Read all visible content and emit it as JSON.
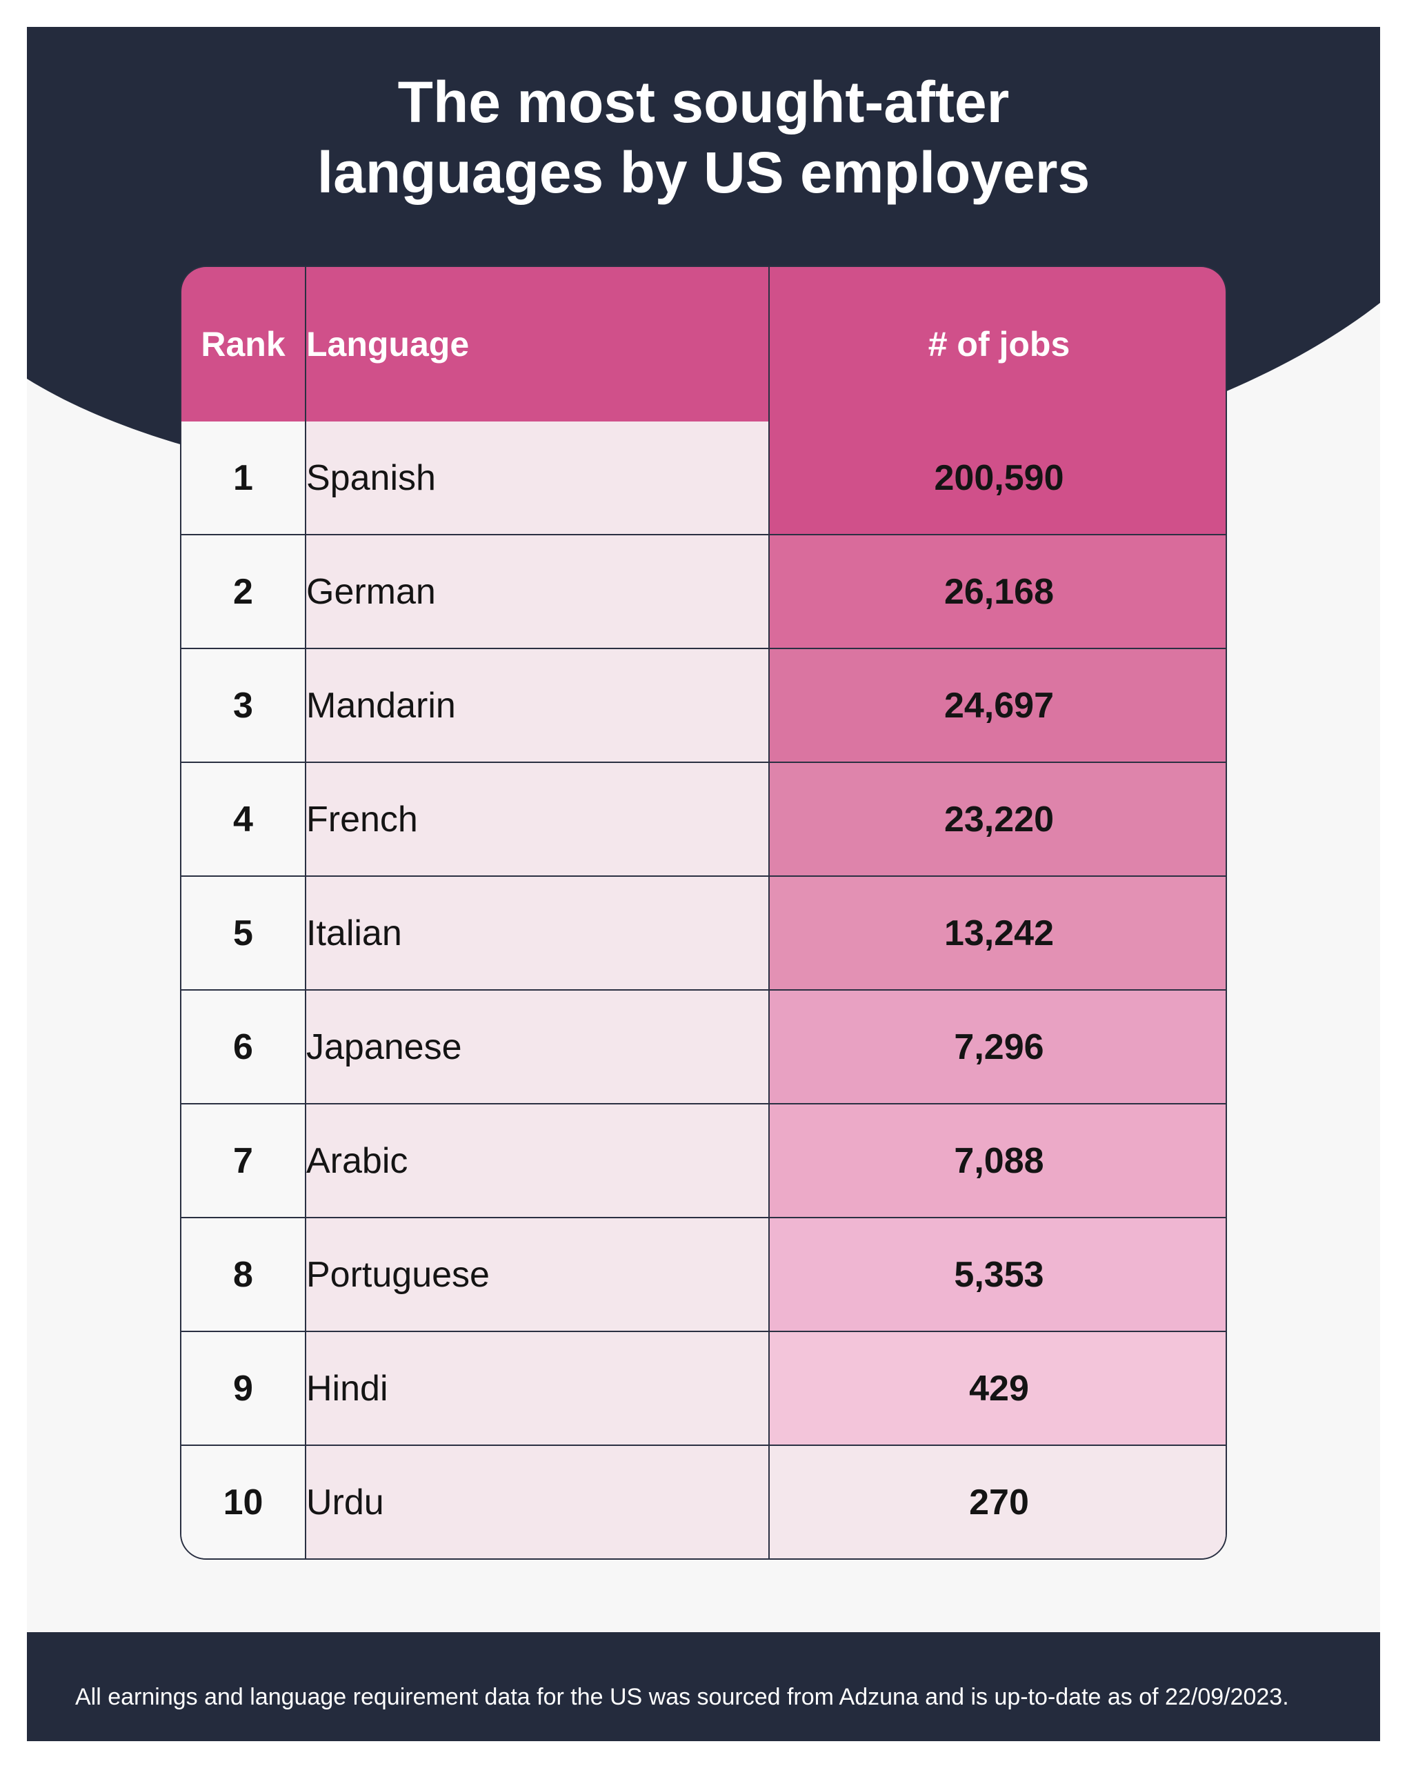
{
  "title": "The most sought-after\nlanguages by US employers",
  "colors": {
    "header": "#242b3d",
    "accent": "#d0508a",
    "language_cell": "#f4e7ec"
  },
  "table": {
    "headers": {
      "rank": "Rank",
      "language": "Language",
      "jobs": "# of jobs"
    }
  },
  "chart_data": {
    "type": "table",
    "title": "The most sought-after languages by US employers",
    "columns": [
      "Rank",
      "Language",
      "# of jobs"
    ],
    "rows": [
      {
        "rank": "1",
        "language": "Spanish",
        "jobs": "200,590",
        "value": 200590
      },
      {
        "rank": "2",
        "language": "German",
        "jobs": "26,168",
        "value": 26168
      },
      {
        "rank": "3",
        "language": "Mandarin",
        "jobs": "24,697",
        "value": 24697
      },
      {
        "rank": "4",
        "language": "French",
        "jobs": "23,220",
        "value": 23220
      },
      {
        "rank": "5",
        "language": "Italian",
        "jobs": "13,242",
        "value": 13242
      },
      {
        "rank": "6",
        "language": "Japanese",
        "jobs": "7,296",
        "value": 7296
      },
      {
        "rank": "7",
        "language": "Arabic",
        "jobs": "7,088",
        "value": 7088
      },
      {
        "rank": "8",
        "language": "Portuguese",
        "jobs": "5,353",
        "value": 5353
      },
      {
        "rank": "9",
        "language": "Hindi",
        "jobs": "429",
        "value": 429
      },
      {
        "rank": "10",
        "language": "Urdu",
        "jobs": "270",
        "value": 270
      }
    ],
    "heat_colors": [
      "#d0508a",
      "#d96b9b",
      "#da75a1",
      "#de84ab",
      "#e391b4",
      "#e8a1c2",
      "#ecaac8",
      "#efb6d2",
      "#f3c5da",
      "#f4e7ec"
    ]
  },
  "footer": {
    "note": "All earnings and language requirement data for the US was sourced from Adzuna and is up-to-date as of 22/09/2023."
  }
}
